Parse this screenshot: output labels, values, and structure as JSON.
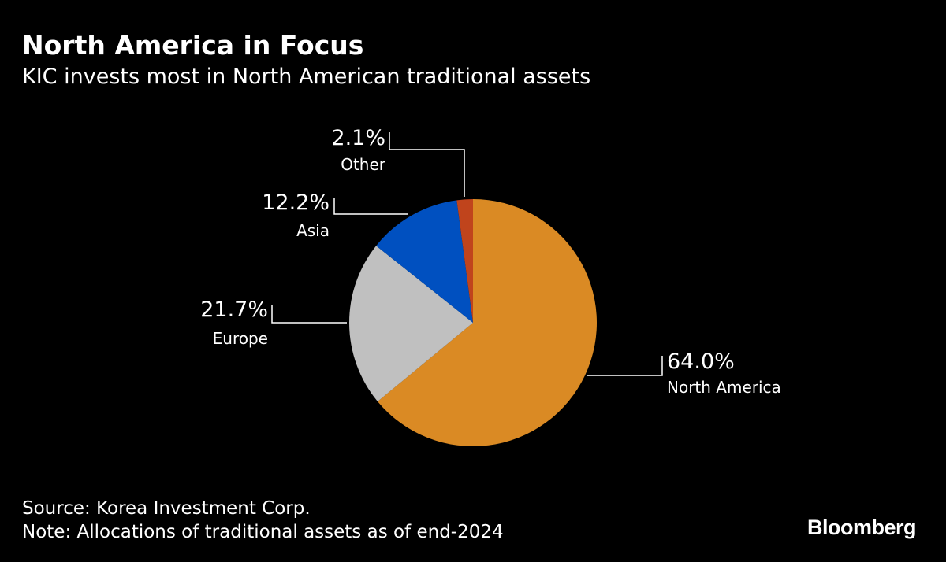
{
  "header": {
    "title": "North America in Focus",
    "subtitle": "KIC invests most in North American traditional assets"
  },
  "footer": {
    "source": "Source: Korea Investment Corp.",
    "note": "Note: Allocations of traditional assets as of end-2024",
    "logo": "Bloomberg"
  },
  "chart_data": {
    "type": "pie",
    "title": "North America in Focus",
    "subtitle": "KIC invests most in North American traditional assets",
    "start": "12 o'clock, clockwise",
    "slices": [
      {
        "label": "North America",
        "value": 64.0,
        "display": "64.0%",
        "color": "#DA8A24"
      },
      {
        "label": "Europe",
        "value": 21.7,
        "display": "21.7%",
        "color": "#C0C0C0"
      },
      {
        "label": "Asia",
        "value": 12.2,
        "display": "12.2%",
        "color": "#0050C0"
      },
      {
        "label": "Other",
        "value": 2.1,
        "display": "2.1%",
        "color": "#C0441C"
      }
    ]
  }
}
